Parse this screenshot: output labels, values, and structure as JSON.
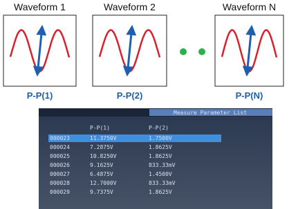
{
  "waveforms": [
    {
      "label": "Waveform 1",
      "measure": "P-P(1)"
    },
    {
      "label": "Waveform 2",
      "measure": "P-P(2)"
    },
    {
      "label": "Waveform N",
      "measure": "P-P(N)"
    }
  ],
  "screen": {
    "title": "Measure Parameter List",
    "columns": [
      "P-P(1)",
      "P-P(2)"
    ],
    "rows": [
      [
        "000023",
        "11.3750V",
        "1.7500V"
      ],
      [
        "000024",
        "7.2875V",
        "1.8625V"
      ],
      [
        "000025",
        "10.8250V",
        "1.8625V"
      ],
      [
        "000026",
        "9.1625V",
        "833.33mV"
      ],
      [
        "000027",
        "6.4875V",
        "1.4500V"
      ],
      [
        "000028",
        "12.7000V",
        "833.33mV"
      ],
      [
        "000029",
        "9.7375V",
        "1.8625V"
      ]
    ]
  }
}
